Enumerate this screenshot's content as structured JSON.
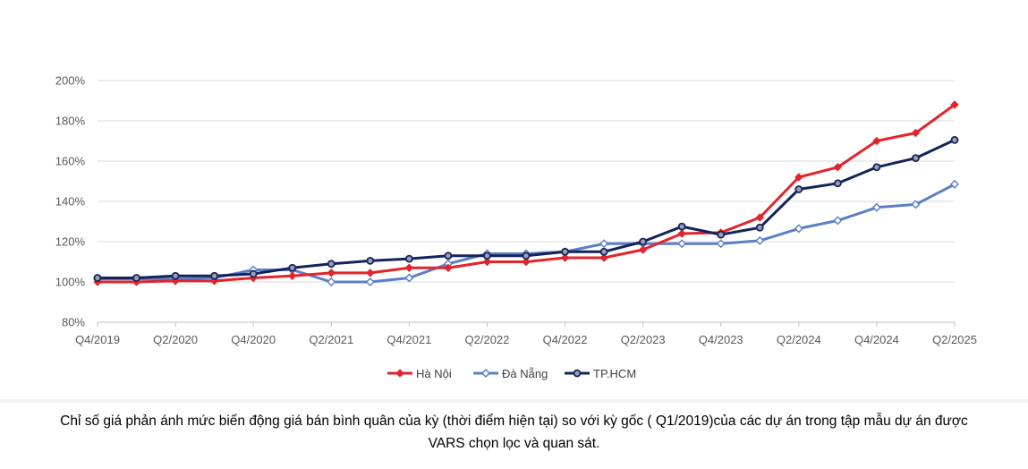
{
  "chart_data": {
    "type": "line",
    "title": "",
    "xlabel": "",
    "ylabel": "",
    "ylim": [
      80,
      200
    ],
    "y_ticks": [
      "80%",
      "100%",
      "120%",
      "140%",
      "160%",
      "180%",
      "200%"
    ],
    "y_tick_values": [
      80,
      100,
      120,
      140,
      160,
      180,
      200
    ],
    "x_labels": [
      "Q4/2019",
      "Q2/2020",
      "Q4/2020",
      "Q2/2021",
      "Q4/2021",
      "Q2/2022",
      "Q4/2022",
      "Q2/2023",
      "Q4/2023",
      "Q2/2024",
      "Q4/2024",
      "Q2/2025"
    ],
    "x": [
      "Q4/2019",
      "Q1/2020",
      "Q2/2020",
      "Q3/2020",
      "Q4/2020",
      "Q1/2021",
      "Q2/2021",
      "Q3/2021",
      "Q4/2021",
      "Q1/2022",
      "Q2/2022",
      "Q3/2022",
      "Q4/2022",
      "Q1/2023",
      "Q2/2023",
      "Q3/2023",
      "Q4/2023",
      "Q1/2024",
      "Q2/2024",
      "Q3/2024",
      "Q4/2024",
      "Q1/2025",
      "Q2/2025"
    ],
    "grid": true,
    "legend": "bottom",
    "series": [
      {
        "name": "Hà Nội",
        "color": "#e3242b",
        "marker": "diamond",
        "values": [
          100,
          100,
          100.5,
          100.5,
          102,
          103,
          104.5,
          104.5,
          107,
          107,
          110,
          110,
          112,
          112,
          116,
          124,
          124.5,
          132,
          152,
          157,
          170,
          174,
          188
        ]
      },
      {
        "name": "Đà Nẵng",
        "color": "#5b7fc7",
        "marker": "diamond-open",
        "values": [
          101.5,
          101.5,
          101.5,
          102,
          106,
          106,
          100,
          100,
          102,
          109,
          114,
          114,
          115,
          119,
          119,
          119,
          119,
          120.5,
          126.5,
          130.5,
          137,
          138.5,
          148.5
        ]
      },
      {
        "name": "TP.HCM",
        "color": "#14235c",
        "marker": "circle",
        "values": [
          102,
          102,
          103,
          103,
          104,
          107,
          109,
          110.5,
          111.5,
          113,
          113,
          113,
          115,
          115,
          120,
          127.5,
          123.5,
          127,
          146,
          149,
          157,
          161.5,
          170.5
        ]
      }
    ]
  },
  "caption": {
    "line1": "Chỉ số giá phản ánh mức biến động giá bán bình quân của kỳ (thời điểm hiện tại) so với kỳ gốc ( Q1/2019)của các dự án trong tập mẫu dự án được",
    "line2": "VARS chọn lọc và quan sát."
  }
}
